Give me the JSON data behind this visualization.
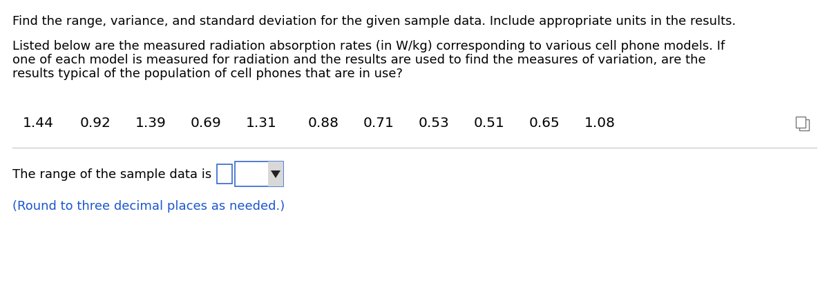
{
  "title_line": "Find the range, variance, and standard deviation for the given sample data. Include appropriate units in the results.",
  "para_line1": "Listed below are the measured radiation absorption rates (in W/kg) corresponding to various cell phone models. If",
  "para_line2": "one of each model is measured for radiation and the results are used to find the measures of variation, are the",
  "para_line3": "results typical of the population of cell phones that are in use?",
  "data_values": [
    "1.44",
    "0.92",
    "1.39",
    "0.69",
    "1.31",
    "0.88",
    "0.71",
    "0.53",
    "0.51",
    "0.65",
    "1.08"
  ],
  "question_text": "The range of the sample data is",
  "note_text": "(Round to three decimal places as needed.)",
  "bg_color": "#ffffff",
  "text_color": "#000000",
  "blue_color": "#1a56cc",
  "font_size_title": 13.0,
  "font_size_para": 13.0,
  "font_size_data": 14.5,
  "font_size_question": 13.0,
  "font_size_note": 13.0
}
